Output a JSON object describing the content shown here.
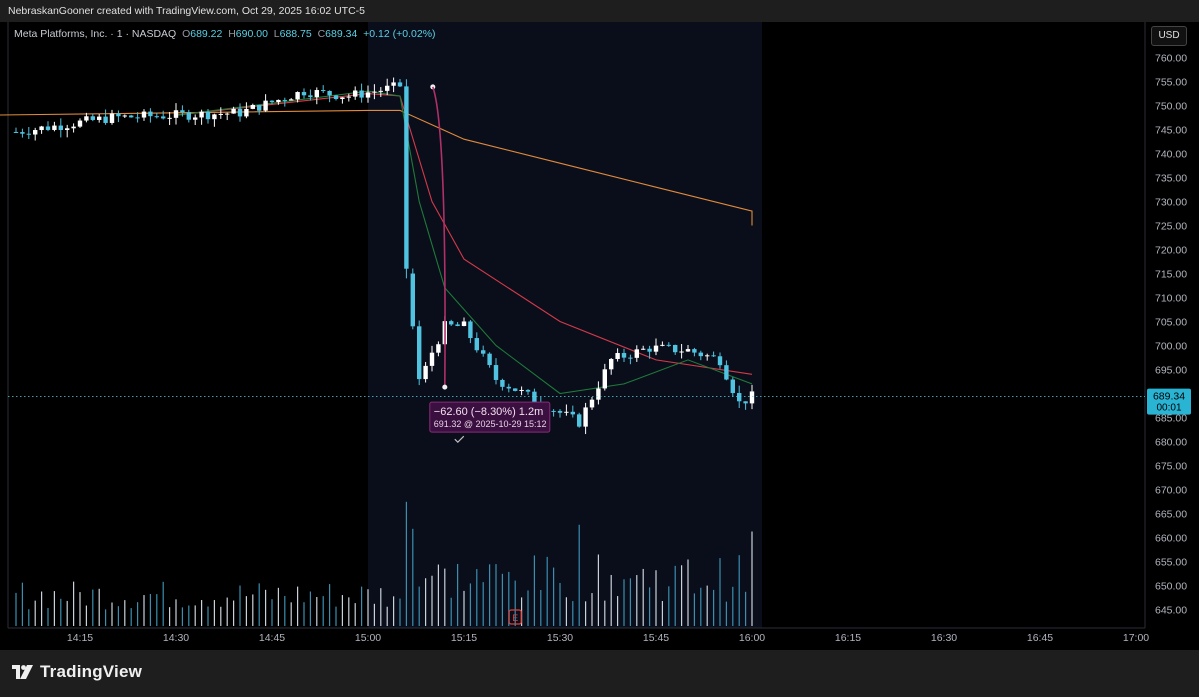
{
  "header": {
    "attribution": "NebraskanGooner created with TradingView.com, Oct 29, 2025 16:02 UTC-5"
  },
  "symbol": {
    "name": "Meta Platforms, Inc. · 1 · NASDAQ",
    "o_label": "O",
    "o": "689.22",
    "h_label": "H",
    "h": "690.00",
    "l_label": "L",
    "l": "688.75",
    "c_label": "C",
    "c": "689.34",
    "change": "+0.12 (+0.02%)"
  },
  "currency": "USD",
  "price_tag": {
    "price": "689.34",
    "countdown": "00:01"
  },
  "measure_tooltip": {
    "line1": "−62.60 (−8.30%) 1.2m",
    "line2": "691.32 @ 2025-10-29 15:12"
  },
  "earnings_marker": "E",
  "footer": {
    "brand": "TradingView"
  },
  "colors": {
    "background": "#000000",
    "session_bg": "#0a0e1a",
    "candle": "#4fc3e0",
    "candle_up": "#ffffff",
    "ema_orange": "#e08a3c",
    "ema_red": "#d33a4a",
    "ema_green": "#1f7a3a",
    "measure": "#b0306a"
  },
  "chart_data": {
    "type": "candlestick",
    "interval": "1 minute",
    "x_ticks": [
      "14:15",
      "14:30",
      "14:45",
      "15:00",
      "15:15",
      "15:30",
      "15:45",
      "16:00",
      "16:15",
      "16:30",
      "16:45",
      "17:00"
    ],
    "y_ticks": [
      645,
      650,
      655,
      660,
      665,
      670,
      675,
      680,
      685,
      690,
      695,
      700,
      705,
      710,
      715,
      720,
      725,
      730,
      735,
      740,
      745,
      750,
      755,
      760
    ],
    "ylim": [
      643,
      762
    ],
    "key_points": [
      {
        "time": "14:05",
        "close": 744.5
      },
      {
        "time": "14:20",
        "close": 747.5
      },
      {
        "time": "14:30",
        "close": 748.0
      },
      {
        "time": "14:40",
        "close": 748.5
      },
      {
        "time": "14:50",
        "close": 753.0
      },
      {
        "time": "14:57",
        "close": 752.0
      },
      {
        "time": "15:05",
        "close": 754.0
      },
      {
        "time": "15:06",
        "close": 715.0
      },
      {
        "time": "15:08",
        "close": 693.0
      },
      {
        "time": "15:12",
        "close": 704.0
      },
      {
        "time": "15:15",
        "close": 704.0
      },
      {
        "time": "15:20",
        "close": 693.0
      },
      {
        "time": "15:30",
        "close": 686.0
      },
      {
        "time": "15:33",
        "close": 684.0
      },
      {
        "time": "15:38",
        "close": 697.0
      },
      {
        "time": "15:44",
        "close": 699.5
      },
      {
        "time": "15:50",
        "close": 699.0
      },
      {
        "time": "15:55",
        "close": 697.0
      },
      {
        "time": "15:58",
        "close": 688.0
      },
      {
        "time": "16:00",
        "close": 689.34
      }
    ],
    "series": [
      {
        "color": "#e08a3c",
        "points": [
          [
            "14:00",
            748.0
          ],
          [
            "14:30",
            748.5
          ],
          [
            "15:00",
            749.0
          ],
          [
            "15:05",
            749.0
          ],
          [
            "15:15",
            743.0
          ],
          [
            "15:30",
            738.0
          ],
          [
            "15:45",
            733.0
          ],
          [
            "16:00",
            728.0
          ],
          [
            "16:00",
            725.0
          ]
        ]
      },
      {
        "color": "#d33a4a",
        "points": [
          [
            "14:30",
            748.0
          ],
          [
            "15:00",
            752.5
          ],
          [
            "15:05",
            752.0
          ],
          [
            "15:10",
            730.0
          ],
          [
            "15:15",
            718.0
          ],
          [
            "15:30",
            705.0
          ],
          [
            "15:45",
            697.0
          ],
          [
            "16:00",
            694.0
          ]
        ]
      },
      {
        "color": "#1f7a3a",
        "points": [
          [
            "14:30",
            748.0
          ],
          [
            "15:00",
            753.0
          ],
          [
            "15:05",
            752.0
          ],
          [
            "15:08",
            730.0
          ],
          [
            "15:12",
            712.0
          ],
          [
            "15:20",
            700.0
          ],
          [
            "15:30",
            690.0
          ],
          [
            "15:40",
            692.0
          ],
          [
            "15:50",
            697.0
          ],
          [
            "16:00",
            692.0
          ]
        ]
      }
    ],
    "volume_peaks": [
      {
        "time": "15:06",
        "level": 0.92
      },
      {
        "time": "15:07",
        "level": 0.72
      },
      {
        "time": "15:33",
        "level": 0.75
      },
      {
        "time": "16:00",
        "level": 0.7
      }
    ],
    "measure": {
      "from": {
        "time": "15:12",
        "price": 753.9
      },
      "to": {
        "time": "15:12",
        "price": 691.32
      }
    }
  }
}
